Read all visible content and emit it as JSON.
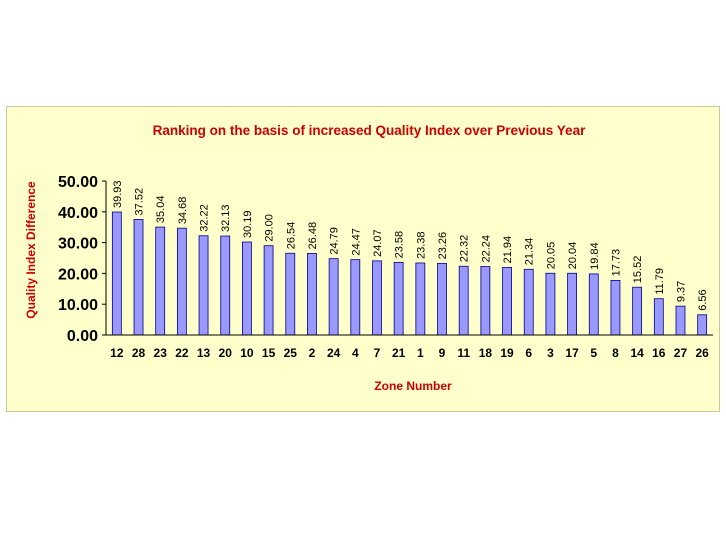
{
  "chart_data": {
    "type": "bar",
    "title": "Ranking on the basis of increased Quality Index over Previous Year",
    "xlabel": "Zone Number",
    "ylabel": "Quality Index Difference",
    "categories": [
      "12",
      "28",
      "23",
      "22",
      "13",
      "20",
      "10",
      "15",
      "25",
      "2",
      "24",
      "4",
      "7",
      "21",
      "1",
      "9",
      "11",
      "18",
      "19",
      "6",
      "3",
      "17",
      "5",
      "8",
      "14",
      "16",
      "27",
      "26"
    ],
    "values": [
      39.93,
      37.52,
      35.04,
      34.68,
      32.22,
      32.13,
      30.19,
      29.0,
      26.54,
      26.48,
      24.79,
      24.47,
      24.07,
      23.58,
      23.38,
      23.26,
      22.32,
      22.24,
      21.94,
      21.34,
      20.05,
      20.04,
      19.84,
      17.73,
      15.52,
      11.79,
      9.37,
      6.56
    ],
    "value_labels": [
      "39.93",
      "37.52",
      "35.04",
      "34.68",
      "32.22",
      "32.13",
      "30.19",
      "29.00",
      "26.54",
      "26.48",
      "24.79",
      "24.47",
      "24.07",
      "23.58",
      "23.38",
      "23.26",
      "22.32",
      "22.24",
      "21.94",
      "21.34",
      "20.05",
      "20.04",
      "19.84",
      "17.73",
      "15.52",
      "11.79",
      "9.37",
      "6.56"
    ],
    "y_ticks": [
      "0.00",
      "10.00",
      "20.00",
      "30.00",
      "40.00",
      "50.00"
    ],
    "ylim": [
      0,
      50
    ],
    "grid": false,
    "legend": "none",
    "colors": {
      "bar_fill": "#9999ff",
      "bar_stroke": "#000080",
      "title": "#cc0000",
      "axis_title": "#cc0000",
      "panel_background": "#ffffcc"
    }
  }
}
